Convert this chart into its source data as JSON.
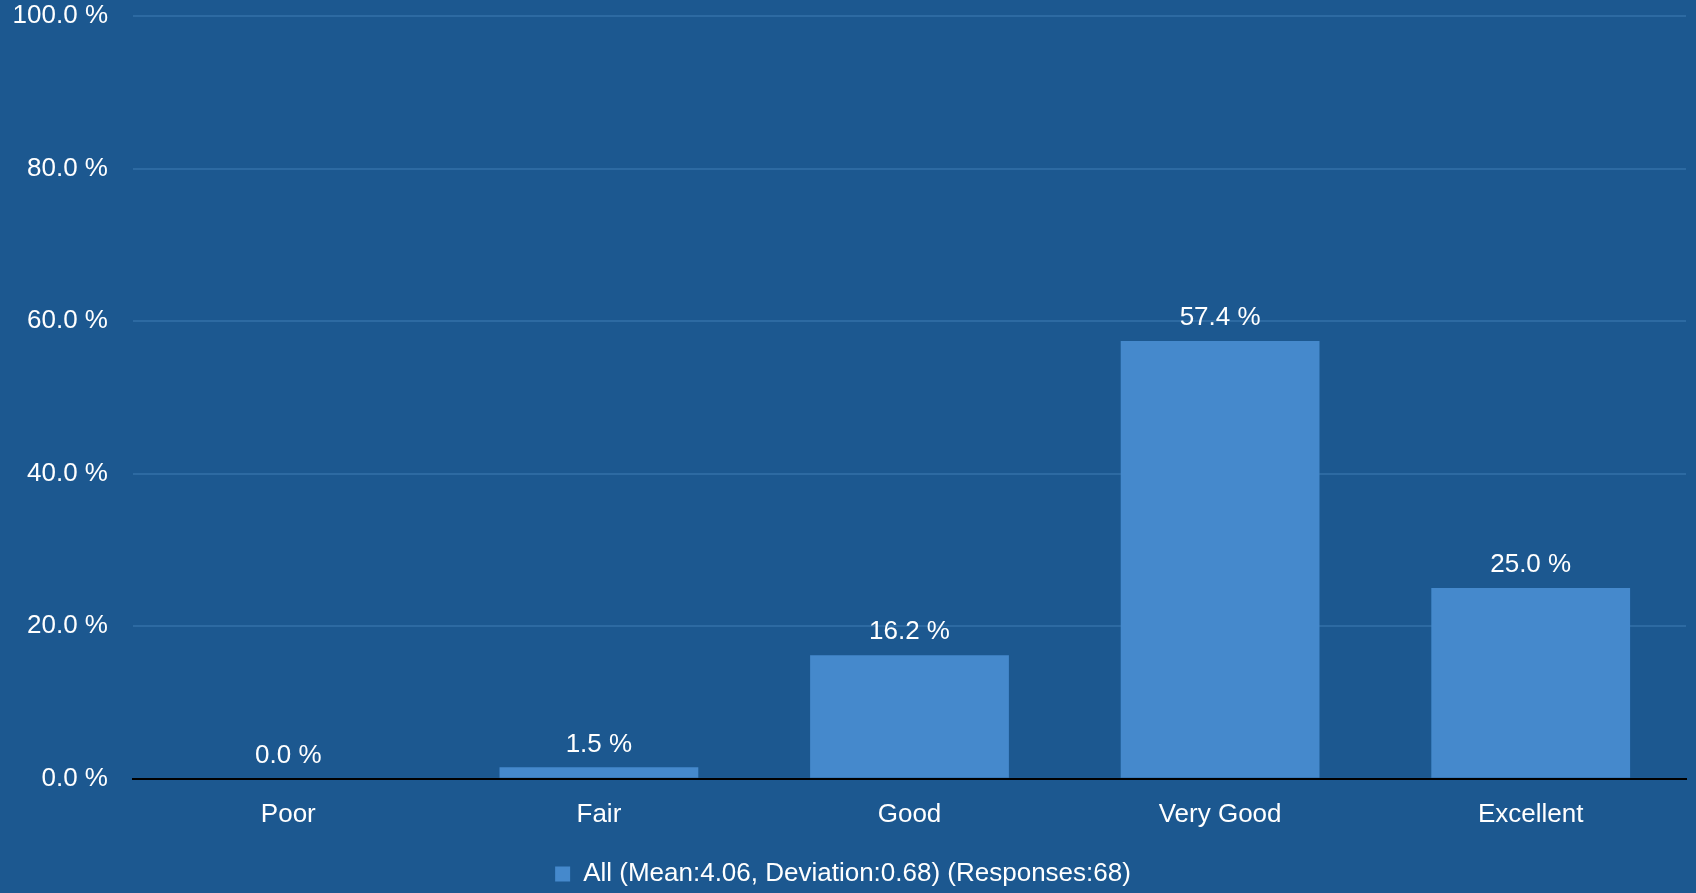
{
  "chart_data": {
    "type": "bar",
    "categories": [
      "Poor",
      "Fair",
      "Good",
      "Very Good",
      "Excellent"
    ],
    "series": [
      {
        "name": "All (Mean:4.06, Deviation:0.68) (Responses:68)",
        "color": "#4589cc",
        "values": [
          0,
          1.5,
          16.2,
          57.4,
          25.0
        ],
        "value_labels": [
          "0.0 %",
          "1.5 %",
          "16.2 %",
          "57.4 %",
          "25.0 %"
        ]
      }
    ],
    "ylim": [
      0,
      100
    ],
    "yticks": [
      {
        "value": 0,
        "label": "0.0 %"
      },
      {
        "value": 20,
        "label": "20.0 %"
      },
      {
        "value": 40,
        "label": "40.0 %"
      },
      {
        "value": 60,
        "label": "60.0 %"
      },
      {
        "value": 80,
        "label": "80.0 %"
      },
      {
        "value": 100,
        "label": "100.0 %"
      }
    ],
    "grid": "y",
    "legend": "bottom"
  }
}
